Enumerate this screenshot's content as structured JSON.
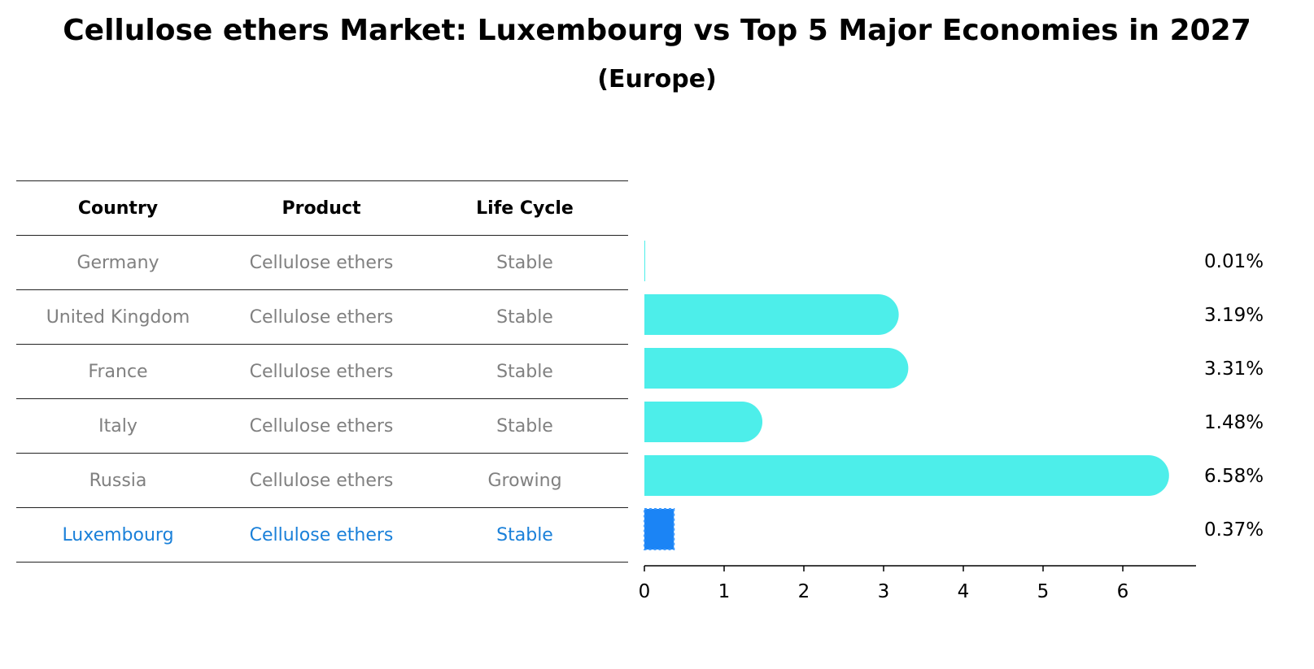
{
  "title": "Cellulose ethers Market: Luxembourg vs Top 5 Major Economies in 2027",
  "subtitle": "(Europe)",
  "table": {
    "headers": [
      "Country",
      "Product",
      "Life Cycle"
    ],
    "rows": [
      {
        "country": "Germany",
        "product": "Cellulose ethers",
        "life_cycle": "Stable"
      },
      {
        "country": "United Kingdom",
        "product": "Cellulose ethers",
        "life_cycle": "Stable"
      },
      {
        "country": "France",
        "product": "Cellulose ethers",
        "life_cycle": "Stable"
      },
      {
        "country": "Italy",
        "product": "Cellulose ethers",
        "life_cycle": "Stable"
      },
      {
        "country": "Russia",
        "product": "Cellulose ethers",
        "life_cycle": "Growing"
      },
      {
        "country": "Luxembourg",
        "product": "Cellulose ethers",
        "life_cycle": "Stable"
      }
    ]
  },
  "chart_data": {
    "type": "bar",
    "orientation": "horizontal",
    "categories": [
      "Germany",
      "United Kingdom",
      "France",
      "Italy",
      "Russia",
      "Luxembourg"
    ],
    "values": [
      0.01,
      3.19,
      3.31,
      1.48,
      6.58,
      0.37
    ],
    "value_labels": [
      "0.01%",
      "3.19%",
      "3.31%",
      "1.48%",
      "6.58%",
      "0.37%"
    ],
    "xticks": [
      0,
      1,
      2,
      3,
      4,
      5,
      6
    ],
    "xlim": [
      0,
      6.9
    ],
    "highlight": "Luxembourg",
    "colors": {
      "bar": "#4deeea",
      "highlight": "#1b84f5"
    }
  }
}
